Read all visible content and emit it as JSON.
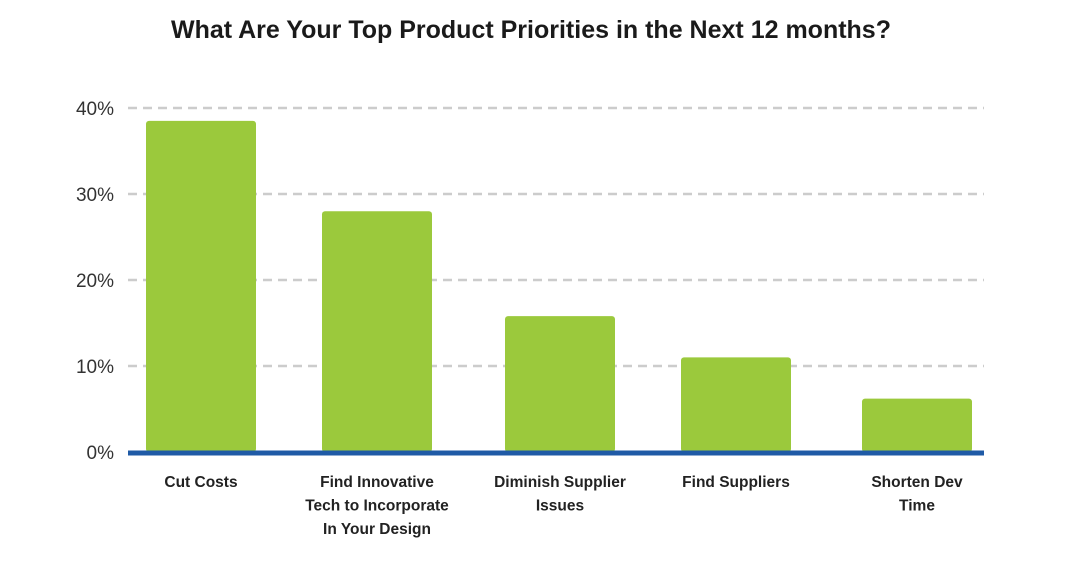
{
  "chart_data": {
    "type": "bar",
    "title": "What Are Your Top Product Priorities in the Next 12 months?",
    "categories": [
      [
        "Cut Costs"
      ],
      [
        "Find Innovative",
        "Tech  to Incorporate",
        "In Your Design"
      ],
      [
        "Diminish Supplier",
        "Issues"
      ],
      [
        "Find Suppliers"
      ],
      [
        "Shorten Dev",
        "Time"
      ]
    ],
    "values": [
      38.5,
      28,
      15.8,
      11,
      6.2
    ],
    "ylim": [
      0,
      40
    ],
    "yticks": [
      0,
      10,
      20,
      30,
      40
    ],
    "ytick_labels": [
      "0%",
      "10%",
      "20%",
      "30%",
      "40%"
    ],
    "xlabel": "",
    "ylabel": "",
    "grid": true,
    "colors": {
      "bar": "#9bc93c",
      "baseline": "#1f5aa6",
      "grid": "#cccccc"
    }
  }
}
